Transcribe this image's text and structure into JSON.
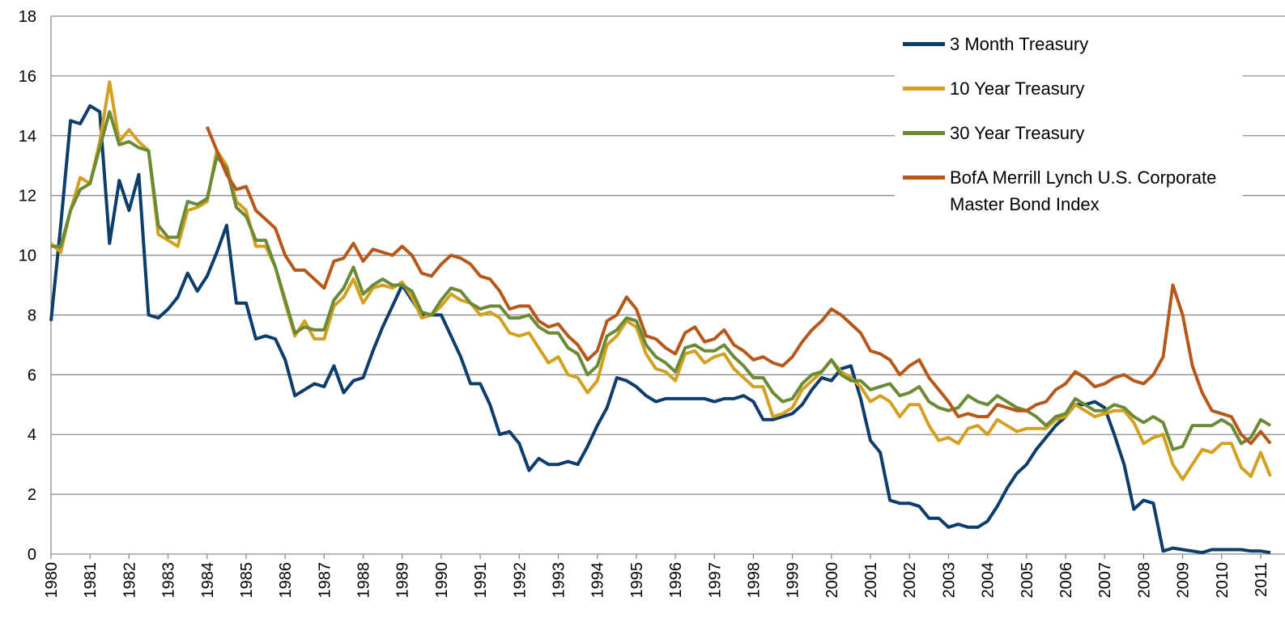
{
  "chart_data": {
    "type": "line",
    "x": [
      1980,
      1980.25,
      1980.5,
      1980.75,
      1981,
      1981.25,
      1981.5,
      1981.75,
      1982,
      1982.25,
      1982.5,
      1982.75,
      1983,
      1983.25,
      1983.5,
      1983.75,
      1984,
      1984.25,
      1984.5,
      1984.75,
      1985,
      1985.25,
      1985.5,
      1985.75,
      1986,
      1986.25,
      1986.5,
      1986.75,
      1987,
      1987.25,
      1987.5,
      1987.75,
      1988,
      1988.25,
      1988.5,
      1988.75,
      1989,
      1989.25,
      1989.5,
      1989.75,
      1990,
      1990.25,
      1990.5,
      1990.75,
      1991,
      1991.25,
      1991.5,
      1991.75,
      1992,
      1992.25,
      1992.5,
      1992.75,
      1993,
      1993.25,
      1993.5,
      1993.75,
      1994,
      1994.25,
      1994.5,
      1994.75,
      1995,
      1995.25,
      1995.5,
      1995.75,
      1996,
      1996.25,
      1996.5,
      1996.75,
      1997,
      1997.25,
      1997.5,
      1997.75,
      1998,
      1998.25,
      1998.5,
      1998.75,
      1999,
      1999.25,
      1999.5,
      1999.75,
      2000,
      2000.25,
      2000.5,
      2000.75,
      2001,
      2001.25,
      2001.5,
      2001.75,
      2002,
      2002.25,
      2002.5,
      2002.75,
      2003,
      2003.25,
      2003.5,
      2003.75,
      2004,
      2004.25,
      2004.5,
      2004.75,
      2005,
      2005.25,
      2005.5,
      2005.75,
      2006,
      2006.25,
      2006.5,
      2006.75,
      2007,
      2007.25,
      2007.5,
      2007.75,
      2008,
      2008.25,
      2008.5,
      2008.75,
      2009,
      2009.25,
      2009.5,
      2009.75,
      2010,
      2010.25,
      2010.5,
      2010.75,
      2011,
      2011.25
    ],
    "series": [
      {
        "name": "3 Month Treasury",
        "color": "#0d3d6b",
        "values": [
          7.8,
          11,
          14.5,
          14.4,
          15,
          14.8,
          10.4,
          12.5,
          11.5,
          12.7,
          8,
          7.9,
          8.2,
          8.6,
          9.4,
          8.8,
          9.3,
          10.1,
          11,
          8.4,
          8.4,
          7.2,
          7.3,
          7.2,
          6.5,
          5.3,
          5.5,
          5.7,
          5.6,
          6.3,
          5.4,
          5.8,
          5.9,
          6.8,
          7.6,
          8.3,
          9,
          8.5,
          8,
          8,
          8,
          7.3,
          6.6,
          5.7,
          5.7,
          5,
          4,
          4.1,
          3.7,
          2.8,
          3.2,
          3,
          3,
          3.1,
          3,
          3.6,
          4.3,
          4.9,
          5.9,
          5.8,
          5.6,
          5.3,
          5.1,
          5.2,
          5.2,
          5.2,
          5.2,
          5.2,
          5.1,
          5.2,
          5.2,
          5.3,
          5.1,
          4.5,
          4.5,
          4.6,
          4.7,
          5,
          5.5,
          5.9,
          5.8,
          6.2,
          6.3,
          5.2,
          3.8,
          3.4,
          1.8,
          1.7,
          1.7,
          1.6,
          1.2,
          1.2,
          0.9,
          1,
          0.9,
          0.9,
          1.1,
          1.6,
          2.2,
          2.7,
          3,
          3.5,
          3.9,
          4.3,
          4.6,
          5,
          5,
          5.1,
          4.9,
          4,
          3,
          1.5,
          1.8,
          1.7,
          0.1,
          0.2,
          0.15,
          0.1,
          0.05,
          0.15,
          0.15,
          0.15,
          0.15,
          0.1,
          0.1,
          0.05
        ]
      },
      {
        "name": "10 Year Treasury",
        "color": "#d4a020",
        "values": [
          10.4,
          10.1,
          11.5,
          12.6,
          12.4,
          13.8,
          15.8,
          13.8,
          14.2,
          13.8,
          13.5,
          10.7,
          10.5,
          10.3,
          11.5,
          11.6,
          11.8,
          13.5,
          13,
          11.8,
          11.5,
          10.3,
          10.3,
          9.6,
          8.4,
          7.3,
          7.8,
          7.2,
          7.2,
          8.3,
          8.6,
          9.2,
          8.4,
          8.9,
          9,
          8.9,
          9.1,
          8.6,
          7.9,
          8,
          8.3,
          8.7,
          8.5,
          8.4,
          8,
          8.1,
          7.9,
          7.4,
          7.3,
          7.4,
          6.9,
          6.4,
          6.6,
          6,
          5.9,
          5.4,
          5.8,
          7,
          7.3,
          7.8,
          7.6,
          6.7,
          6.2,
          6.1,
          5.8,
          6.7,
          6.8,
          6.4,
          6.6,
          6.7,
          6.2,
          5.9,
          5.6,
          5.6,
          4.6,
          4.7,
          4.9,
          5.5,
          5.8,
          6.1,
          6.5,
          6.1,
          5.9,
          5.6,
          5.1,
          5.3,
          5.1,
          4.6,
          5,
          5,
          4.3,
          3.8,
          3.9,
          3.7,
          4.2,
          4.3,
          4,
          4.5,
          4.3,
          4.1,
          4.2,
          4.2,
          4.2,
          4.5,
          4.6,
          5,
          4.8,
          4.6,
          4.7,
          4.8,
          4.8,
          4.4,
          3.7,
          3.9,
          4,
          3,
          2.5,
          3,
          3.5,
          3.4,
          3.7,
          3.7,
          2.9,
          2.6,
          3.4,
          2.6
        ]
      },
      {
        "name": "30 Year Treasury",
        "color": "#6b8a35",
        "values": [
          10.3,
          10.3,
          11.5,
          12.2,
          12.4,
          13.6,
          14.8,
          13.7,
          13.8,
          13.6,
          13.5,
          11,
          10.6,
          10.6,
          11.8,
          11.7,
          11.9,
          13.3,
          12.9,
          11.6,
          11.3,
          10.5,
          10.5,
          9.6,
          8.5,
          7.4,
          7.6,
          7.5,
          7.5,
          8.5,
          8.9,
          9.6,
          8.7,
          9,
          9.2,
          9,
          9,
          8.8,
          8.1,
          8,
          8.5,
          8.9,
          8.8,
          8.4,
          8.2,
          8.3,
          8.3,
          7.9,
          7.9,
          8,
          7.6,
          7.4,
          7.4,
          6.9,
          6.7,
          6,
          6.3,
          7.3,
          7.5,
          7.9,
          7.8,
          7,
          6.6,
          6.4,
          6.1,
          6.9,
          7,
          6.8,
          6.8,
          7,
          6.6,
          6.3,
          5.9,
          5.9,
          5.4,
          5.1,
          5.2,
          5.7,
          6,
          6.1,
          6.5,
          6,
          5.8,
          5.8,
          5.5,
          5.6,
          5.7,
          5.3,
          5.4,
          5.6,
          5.1,
          4.9,
          4.8,
          4.9,
          5.3,
          5.1,
          5,
          5.3,
          5.1,
          4.9,
          4.8,
          4.6,
          4.3,
          4.6,
          4.7,
          5.2,
          5,
          4.8,
          4.8,
          5,
          4.9,
          4.6,
          4.4,
          4.6,
          4.4,
          3.5,
          3.6,
          4.3,
          4.3,
          4.3,
          4.5,
          4.3,
          3.7,
          3.9,
          4.5,
          4.3
        ]
      },
      {
        "name": "BofA Merrill Lynch U.S. Corporate Master Bond Index",
        "color": "#b5581a",
        "values": [
          null,
          null,
          null,
          null,
          null,
          null,
          null,
          null,
          null,
          null,
          null,
          null,
          null,
          null,
          null,
          null,
          14.3,
          13.5,
          12.7,
          12.2,
          12.3,
          11.5,
          11.2,
          10.9,
          10,
          9.5,
          9.5,
          9.2,
          8.9,
          9.8,
          9.9,
          10.4,
          9.8,
          10.2,
          10.1,
          10,
          10.3,
          10,
          9.4,
          9.3,
          9.7,
          10,
          9.9,
          9.7,
          9.3,
          9.2,
          8.8,
          8.2,
          8.3,
          8.3,
          7.8,
          7.6,
          7.7,
          7.3,
          7,
          6.5,
          6.8,
          7.8,
          8,
          8.6,
          8.2,
          7.3,
          7.2,
          6.9,
          6.7,
          7.4,
          7.6,
          7.1,
          7.2,
          7.5,
          7,
          6.8,
          6.5,
          6.6,
          6.4,
          6.3,
          6.6,
          7.1,
          7.5,
          7.8,
          8.2,
          8,
          7.7,
          7.4,
          6.8,
          6.7,
          6.5,
          6,
          6.3,
          6.5,
          5.9,
          5.5,
          5.1,
          4.6,
          4.7,
          4.6,
          4.6,
          5,
          4.9,
          4.8,
          4.8,
          5,
          5.1,
          5.5,
          5.7,
          6.1,
          5.9,
          5.6,
          5.7,
          5.9,
          6,
          5.8,
          5.7,
          6,
          6.6,
          9,
          8,
          6.3,
          5.4,
          4.8,
          4.7,
          4.6,
          4,
          3.7,
          4.1,
          3.7
        ]
      }
    ],
    "xlim": [
      1980,
      2011.25
    ],
    "xticks": [
      1980,
      1981,
      1982,
      1983,
      1984,
      1985,
      1986,
      1987,
      1988,
      1989,
      1990,
      1991,
      1992,
      1993,
      1994,
      1995,
      1996,
      1997,
      1998,
      1999,
      2000,
      2001,
      2002,
      2003,
      2004,
      2005,
      2006,
      2007,
      2008,
      2009,
      2010,
      2011
    ],
    "ylim": [
      0,
      18
    ],
    "yticks": [
      0,
      2,
      4,
      6,
      8,
      10,
      12,
      14,
      16,
      18
    ],
    "grid": true
  }
}
